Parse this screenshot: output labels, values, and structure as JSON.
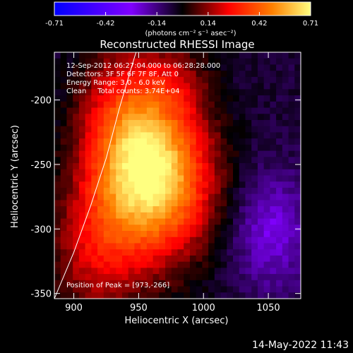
{
  "chart_data": {
    "type": "heatmap",
    "title": "Reconstructed RHESSI Image",
    "xlabel": "Heliocentric X (arcsec)",
    "ylabel": "Heliocentric Y (arcsec)",
    "xlim": [
      885,
      1075
    ],
    "ylim": [
      -354,
      -163
    ],
    "x_ticks": [
      900,
      950,
      1000,
      1050
    ],
    "y_ticks": [
      -200,
      -250,
      -300,
      -350
    ],
    "grid": false,
    "colorbar": {
      "label": "(photons cm⁻² s⁻¹ asec⁻²)",
      "ticks": [
        "-0.71",
        "-0.42",
        "-0.14",
        "0.14",
        "0.42",
        "0.71"
      ],
      "range": [
        -0.71,
        0.71
      ],
      "position": "top"
    },
    "annotations": [
      "12-Sep-2012 06:27:04.000 to 06:28:28.000",
      "Detectors: 3F 5F 6F 7F 8F, Att 0",
      "Energy Range: 3.0 - 6.0 keV",
      "Clean     Total counts: 3.74E+04"
    ],
    "peak_label": "Position of Peak = [973,-266]",
    "peak": {
      "x": 973,
      "y": -266,
      "value": 0.71
    },
    "sources": [
      {
        "x": 966,
        "y": -262,
        "amp": 0.62,
        "sx": 30,
        "sy": 42
      },
      {
        "x": 941,
        "y": -222,
        "amp": 0.36,
        "sx": 26,
        "sy": 46
      },
      {
        "x": 918,
        "y": -315,
        "amp": 0.26,
        "sx": 26,
        "sy": 40
      },
      {
        "x": 980,
        "y": -185,
        "amp": 0.12,
        "sx": 18,
        "sy": 20
      }
    ],
    "background": {
      "value": -0.06,
      "min": -0.42,
      "trough": {
        "x": 1052,
        "y": -302,
        "amp": -0.2,
        "sx": 22,
        "sy": 32
      }
    },
    "limb_curve": [
      {
        "x": 885,
        "y": -354
      },
      {
        "x": 900,
        "y": -318
      },
      {
        "x": 913,
        "y": -282
      },
      {
        "x": 925,
        "y": -245
      },
      {
        "x": 935,
        "y": -207
      },
      {
        "x": 944,
        "y": -176
      },
      {
        "x": 948,
        "y": -163
      }
    ]
  },
  "timestamp": "14-May-2022 11:43"
}
